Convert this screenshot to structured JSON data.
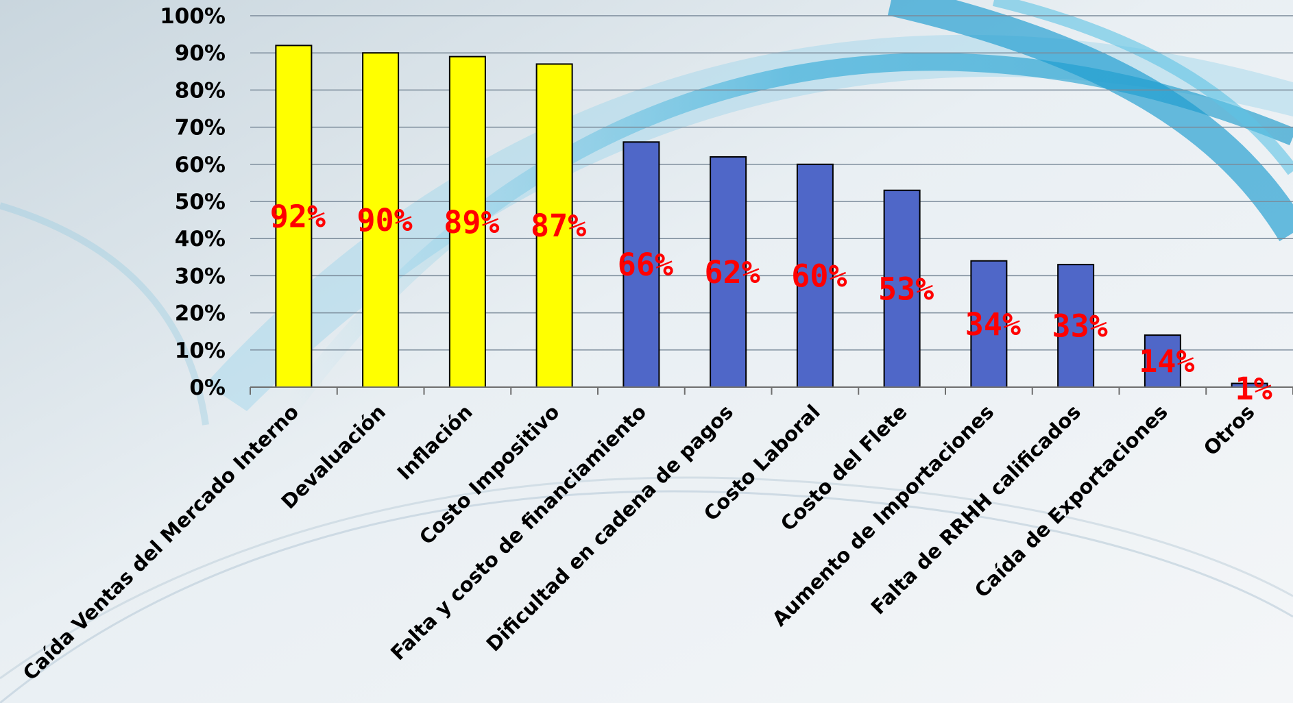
{
  "colors": {
    "highlight_bar": "#FFFF00",
    "normal_bar": "#4F67C8",
    "bar_outline": "#000000",
    "data_label": "#FF0000",
    "gridline": "#7A8A99",
    "background": "#E6EEF3"
  },
  "chart_data": {
    "type": "bar",
    "title": "",
    "xlabel": "",
    "ylabel": "",
    "ylim": [
      0,
      100
    ],
    "y_unit": "%",
    "grid": true,
    "legend": "none",
    "yticks": [
      "0%",
      "10%",
      "20%",
      "30%",
      "40%",
      "50%",
      "60%",
      "70%",
      "80%",
      "90%",
      "100%"
    ],
    "categories": [
      "Caída Ventas del Mercado Interno",
      "Devaluación",
      "Inflación",
      "Costo Impositivo",
      "Falta y costo de financiamiento",
      "Dificultad en cadena de pagos",
      "Costo Laboral",
      "Costo del Flete",
      "Aumento de Importaciones",
      "Falta de RRHH calificados",
      "Caída de Exportaciones",
      "Otros"
    ],
    "values": [
      92,
      90,
      89,
      87,
      66,
      62,
      60,
      53,
      34,
      33,
      14,
      1
    ],
    "data_labels": [
      "92%",
      "90%",
      "89%",
      "87%",
      "66%",
      "62%",
      "60%",
      "53%",
      "34%",
      "33%",
      "14%",
      "1%"
    ],
    "highlighted": [
      true,
      true,
      true,
      true,
      false,
      false,
      false,
      false,
      false,
      false,
      false,
      false
    ]
  }
}
